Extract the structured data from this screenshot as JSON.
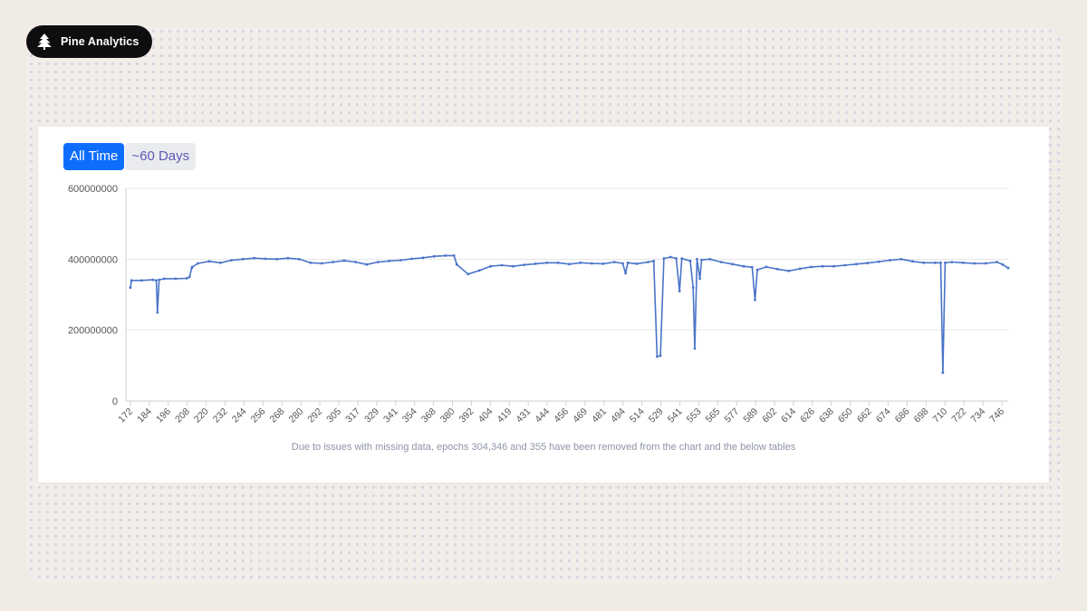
{
  "brand": {
    "name": "Pine Analytics",
    "icon": "pine-tree-icon"
  },
  "tabs": [
    {
      "label": "All Time",
      "active": true
    },
    {
      "label": "~60 Days",
      "active": false
    }
  ],
  "colors": {
    "line": "#4a74c8",
    "active_tab": "#0d6efd",
    "inactive_tab_text": "#5d5ab7"
  },
  "footnote": "Due to issues with missing data, epochs 304,346 and 355 have been removed from the chart and the below tables",
  "chart_data": {
    "type": "line",
    "title": "",
    "xlabel": "",
    "ylabel": "",
    "ylim": [
      0,
      600000000
    ],
    "yticks": [
      "0",
      "200000000",
      "400000000",
      "600000000"
    ],
    "xticks": [
      "172",
      "184",
      "196",
      "208",
      "220",
      "232",
      "244",
      "256",
      "268",
      "280",
      "292",
      "305",
      "317",
      "329",
      "341",
      "354",
      "368",
      "380",
      "392",
      "404",
      "419",
      "431",
      "444",
      "456",
      "469",
      "481",
      "494",
      "514",
      "529",
      "541",
      "553",
      "565",
      "577",
      "589",
      "602",
      "614",
      "626",
      "638",
      "650",
      "662",
      "674",
      "686",
      "698",
      "710",
      "722",
      "734",
      "746"
    ],
    "grid": true,
    "legend": "none",
    "series": [
      {
        "points": [
          [
            0,
            320000000
          ],
          [
            0.2,
            340000000
          ],
          [
            2,
            340000000
          ],
          [
            4,
            342000000
          ],
          [
            4.6,
            340000000
          ],
          [
            4.8,
            250000000
          ],
          [
            5.1,
            342000000
          ],
          [
            6,
            345000000
          ],
          [
            8,
            345000000
          ],
          [
            10,
            346000000
          ],
          [
            10.5,
            350000000
          ],
          [
            10.9,
            375000000
          ],
          [
            11,
            378000000
          ],
          [
            12,
            388000000
          ],
          [
            14,
            394000000
          ],
          [
            16,
            390000000
          ],
          [
            18,
            397000000
          ],
          [
            20,
            400000000
          ],
          [
            22,
            403000000
          ],
          [
            24,
            401000000
          ],
          [
            26,
            400000000
          ],
          [
            28,
            403000000
          ],
          [
            30,
            400000000
          ],
          [
            32,
            390000000
          ],
          [
            34,
            388000000
          ],
          [
            36,
            392000000
          ],
          [
            38,
            396000000
          ],
          [
            40,
            392000000
          ],
          [
            42,
            385000000
          ],
          [
            44,
            392000000
          ],
          [
            46,
            395000000
          ],
          [
            48,
            397000000
          ],
          [
            50,
            401000000
          ],
          [
            52,
            404000000
          ],
          [
            54,
            408000000
          ],
          [
            56,
            410000000
          ],
          [
            57.5,
            410000000
          ],
          [
            58,
            385000000
          ],
          [
            60,
            358000000
          ],
          [
            62,
            368000000
          ],
          [
            64,
            380000000
          ],
          [
            66,
            383000000
          ],
          [
            68,
            380000000
          ],
          [
            70,
            384000000
          ],
          [
            72,
            387000000
          ],
          [
            74,
            390000000
          ],
          [
            76,
            390000000
          ],
          [
            78,
            386000000
          ],
          [
            80,
            390000000
          ],
          [
            82,
            388000000
          ],
          [
            84,
            387000000
          ],
          [
            86,
            392000000
          ],
          [
            87.5,
            388000000
          ],
          [
            88,
            360000000
          ],
          [
            88.4,
            390000000
          ],
          [
            90,
            387000000
          ],
          [
            92,
            392000000
          ],
          [
            93,
            395000000
          ],
          [
            93.6,
            125000000
          ],
          [
            94.2,
            128000000
          ],
          [
            94.8,
            402000000
          ],
          [
            96,
            406000000
          ],
          [
            97,
            402000000
          ],
          [
            97.6,
            310000000
          ],
          [
            98,
            402000000
          ],
          [
            99.5,
            395000000
          ],
          [
            100,
            320000000
          ],
          [
            100.3,
            148000000
          ],
          [
            100.7,
            400000000
          ],
          [
            101.2,
            345000000
          ],
          [
            101.5,
            398000000
          ],
          [
            103,
            400000000
          ],
          [
            105,
            392000000
          ],
          [
            107,
            386000000
          ],
          [
            109,
            380000000
          ],
          [
            110.5,
            377000000
          ],
          [
            111,
            285000000
          ],
          [
            111.4,
            370000000
          ],
          [
            113,
            378000000
          ],
          [
            115,
            372000000
          ],
          [
            117,
            367000000
          ],
          [
            119,
            373000000
          ],
          [
            121,
            378000000
          ],
          [
            123,
            380000000
          ],
          [
            125,
            380000000
          ],
          [
            127,
            383000000
          ],
          [
            129,
            386000000
          ],
          [
            131,
            389000000
          ],
          [
            133,
            393000000
          ],
          [
            135,
            397000000
          ],
          [
            137,
            400000000
          ],
          [
            139,
            394000000
          ],
          [
            141,
            390000000
          ],
          [
            143,
            390000000
          ],
          [
            144,
            390000000
          ],
          [
            144.4,
            80000000
          ],
          [
            144.8,
            390000000
          ],
          [
            146,
            392000000
          ],
          [
            148,
            390000000
          ],
          [
            150,
            388000000
          ],
          [
            152,
            388000000
          ],
          [
            154,
            392000000
          ],
          [
            155,
            385000000
          ],
          [
            156,
            375000000
          ]
        ]
      }
    ]
  }
}
